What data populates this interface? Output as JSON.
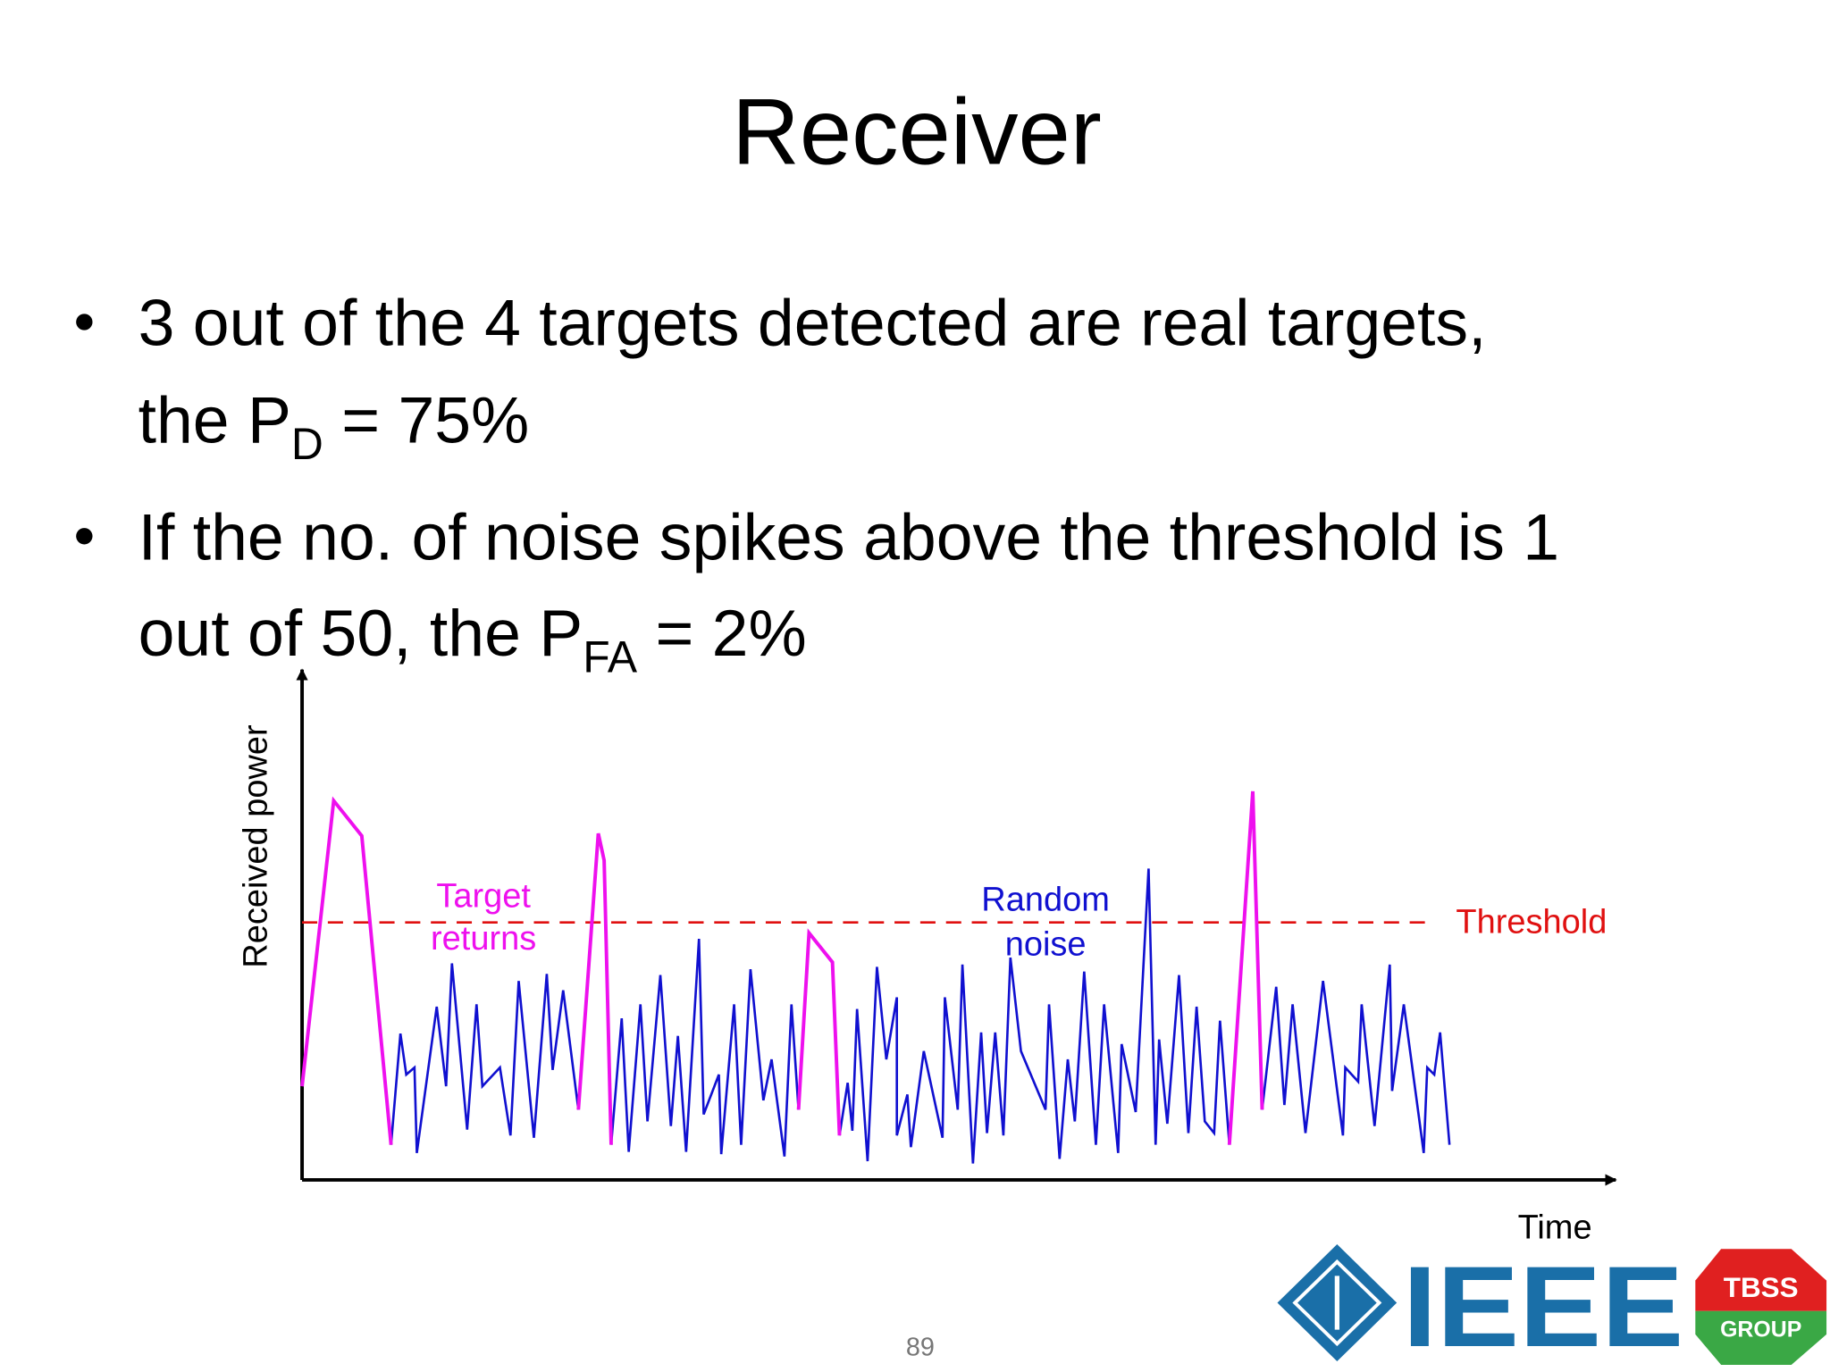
{
  "title": "Receiver",
  "bullets": [
    {
      "lines": [
        "3 out of the 4 targets detected are real targets,",
        "the P"
      ],
      "subscript": "D",
      "after": " = 75%"
    },
    {
      "lines": [
        "If the no. of noise spikes above the threshold is 1",
        "out of 50, the P"
      ],
      "subscript": "FA",
      "after": " = 2%"
    }
  ],
  "diagram": {
    "y_axis_label": "Received power",
    "x_axis_label": "Time",
    "target_label": [
      "Target",
      "returns"
    ],
    "noise_label": [
      "Random",
      "noise"
    ],
    "threshold_label": "Threshold"
  },
  "logo": {
    "ieee": "IEEE",
    "tbss": "TBSS",
    "group": "GROUP"
  },
  "page_number": "89"
}
